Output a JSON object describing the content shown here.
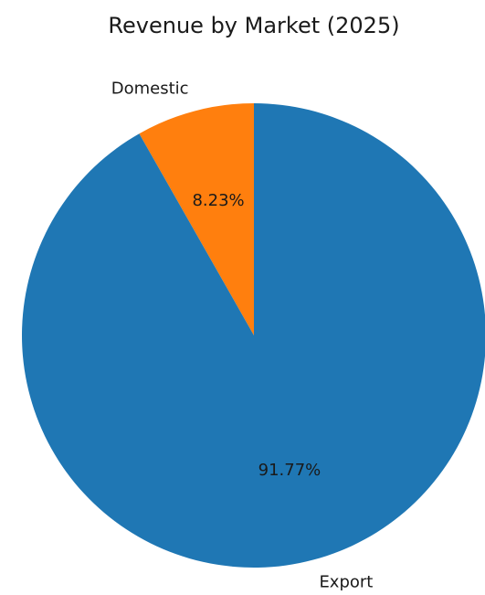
{
  "chart_data": {
    "type": "pie",
    "title": "Revenue by Market (2025)",
    "start_angle_deg": 90,
    "direction": "counterclockwise",
    "slices": [
      {
        "label": "Domestic",
        "value": 8.23,
        "pct_label": "8.23%",
        "color": "#ff7f0e"
      },
      {
        "label": "Export",
        "value": 91.77,
        "pct_label": "91.77%",
        "color": "#1f77b4"
      }
    ]
  }
}
